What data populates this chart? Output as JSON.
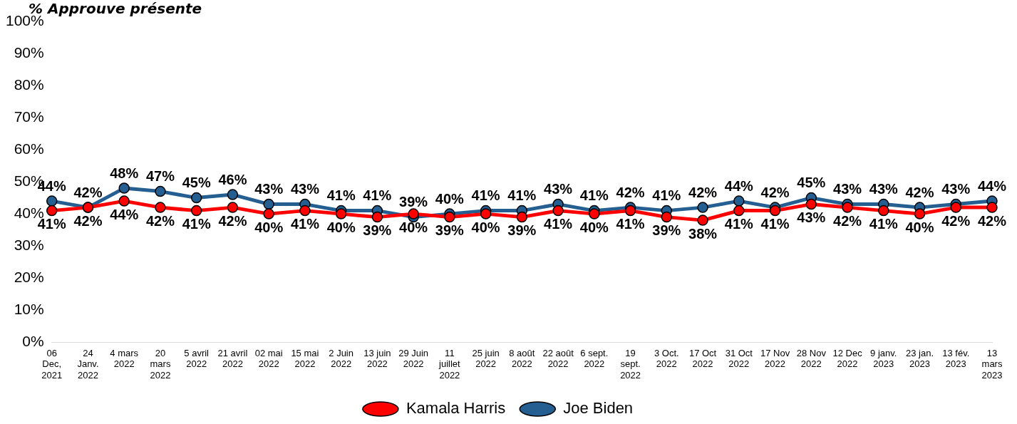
{
  "chart_data": {
    "type": "line",
    "title": "% Approuve présente",
    "categories": [
      "06 Dec, 2021",
      "24 Janv. 2022",
      "4 mars 2022",
      "20 mars 2022",
      "5 avril 2022",
      "21 avril 2022",
      "02 mai 2022",
      "15 mai 2022",
      "2 Juin 2022",
      "13 juin 2022",
      "29 Juin 2022",
      "11 juillet 2022",
      "25 juin 2022",
      "8 août 2022",
      "22 août 2022",
      "6 sept. 2022",
      "19 sept. 2022",
      "3 Oct. 2022",
      "17 Oct 2022",
      "31 Oct 2022",
      "17 Nov 2022",
      "28 Nov 2022",
      "12 Dec 2022",
      "9 janv. 2023",
      "23 jan. 2023",
      "13 fév. 2023",
      "13 mars 2023"
    ],
    "series": [
      {
        "name": "Kamala Harris",
        "color": "#ff0000",
        "values": [
          41,
          42,
          44,
          42,
          41,
          42,
          40,
          41,
          40,
          39,
          40,
          39,
          40,
          39,
          41,
          40,
          41,
          39,
          38,
          41,
          41,
          43,
          42,
          41,
          40,
          42,
          42
        ],
        "value_labels": [
          "41%",
          "42%",
          "44%",
          "42%",
          "41%",
          "42%",
          "40%",
          "41%",
          "40%",
          "39%",
          "40%",
          "39%",
          "40%",
          "39%",
          "41%",
          "40%",
          "41%",
          "39%",
          "38%",
          "41%",
          "41%",
          "43%",
          "42%",
          "41%",
          "40%",
          "42%",
          "42%"
        ]
      },
      {
        "name": "Joe Biden",
        "color": "#255e91",
        "values": [
          44,
          42,
          48,
          47,
          45,
          46,
          43,
          43,
          41,
          41,
          39,
          40,
          41,
          41,
          43,
          41,
          42,
          41,
          42,
          44,
          42,
          45,
          43,
          43,
          42,
          43,
          44
        ],
        "value_labels": [
          "44%",
          "42%",
          "48%",
          "47%",
          "45%",
          "46%",
          "43%",
          "43%",
          "41%",
          "41%",
          "39%",
          "40%",
          "41%",
          "41%",
          "43%",
          "41%",
          "42%",
          "41%",
          "42%",
          "44%",
          "42%",
          "45%",
          "43%",
          "43%",
          "42%",
          "43%",
          "44%"
        ]
      }
    ],
    "ylim": [
      0,
      100
    ],
    "yticks": [
      {
        "value": 0,
        "label": "0%"
      },
      {
        "value": 10,
        "label": "10%"
      },
      {
        "value": 20,
        "label": "20%"
      },
      {
        "value": 30,
        "label": "30%"
      },
      {
        "value": 40,
        "label": "40%"
      },
      {
        "value": 50,
        "label": "50%"
      },
      {
        "value": 60,
        "label": "60%"
      },
      {
        "value": 70,
        "label": "70%"
      },
      {
        "value": 80,
        "label": "80%"
      },
      {
        "value": 90,
        "label": "90%"
      },
      {
        "value": 100,
        "label": "100%"
      }
    ],
    "grid": false,
    "legend": "bottom",
    "marker": "circle",
    "line_style": "solid"
  }
}
